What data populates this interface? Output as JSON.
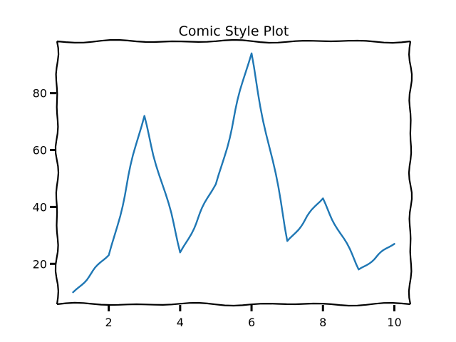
{
  "chart_data": {
    "type": "line",
    "title": "Comic Style Plot",
    "xlabel": "",
    "ylabel": "",
    "x": [
      1,
      2,
      3,
      4,
      5,
      6,
      7,
      8,
      9,
      10
    ],
    "series": [
      {
        "values": [
          10,
          23,
          72,
          24,
          48,
          94,
          28,
          43,
          18,
          27
        ],
        "color": "#1f77b4"
      }
    ],
    "xlim": [
      0.55,
      10.45
    ],
    "ylim": [
      5.8,
      98.2
    ],
    "xticks": [
      2,
      4,
      6,
      8,
      10
    ],
    "xtick_labels": [
      "2",
      "4",
      "6",
      "8",
      "10"
    ],
    "yticks": [
      20,
      40,
      60,
      80
    ],
    "ytick_labels": [
      "20",
      "40",
      "60",
      "80"
    ],
    "grid": false,
    "style": "xkcd"
  }
}
